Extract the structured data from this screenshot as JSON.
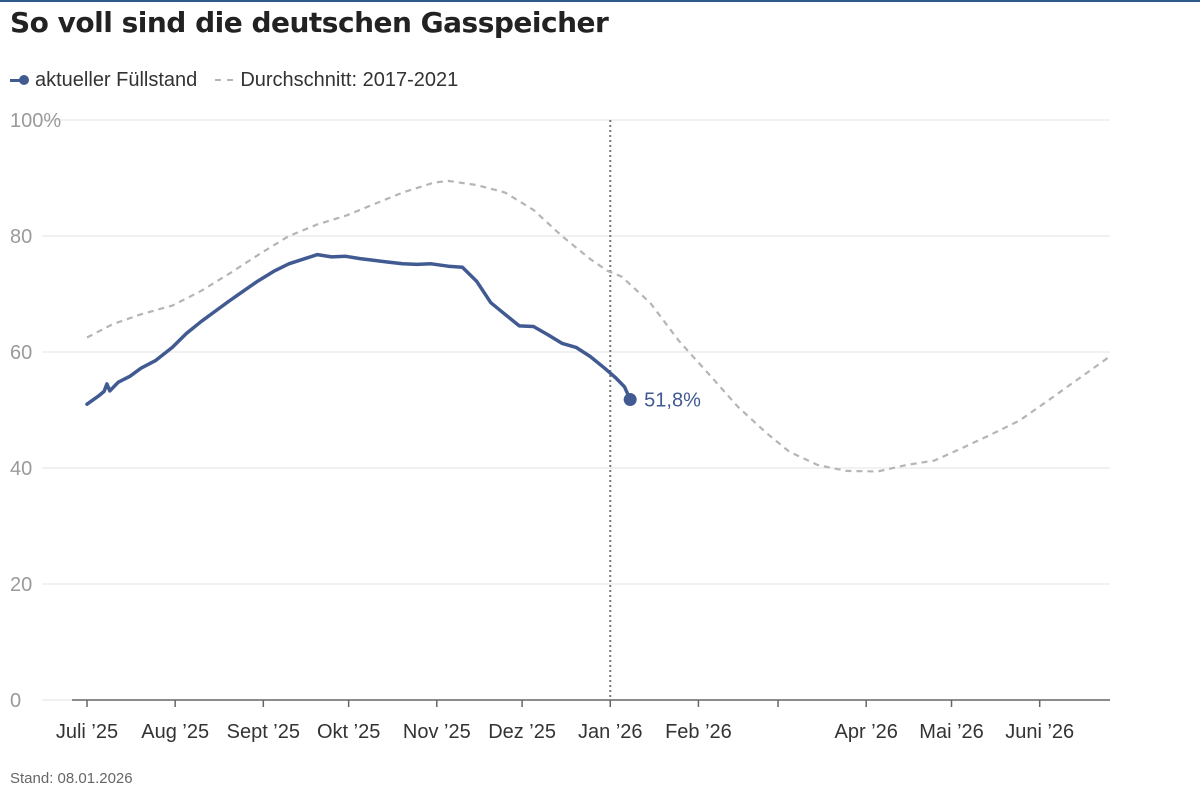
{
  "header": {
    "title": "So voll sind die deutschen Gasspeicher",
    "source_note": "Stand: 08.01.2026"
  },
  "colors": {
    "current": "#415a92",
    "average": "#b5b5b5",
    "grid": "#e3e3e3",
    "today_line": "#777777"
  },
  "chart_data": {
    "type": "line",
    "title": "So voll sind die deutschen Gasspeicher",
    "xlabel": "",
    "ylabel": "",
    "y_unit": "%",
    "ylim": [
      0,
      100
    ],
    "yticks": [
      0,
      20,
      40,
      60,
      80,
      100
    ],
    "ytick_labels": [
      "0",
      "20",
      "40",
      "60",
      "80",
      "100%"
    ],
    "xlim": [
      "2025-07-01",
      "2026-06-30"
    ],
    "xticks": [
      "2025-07-01",
      "2025-08-01",
      "2025-09-01",
      "2025-10-01",
      "2025-11-01",
      "2025-12-01",
      "2026-01-01",
      "2026-02-01",
      "2026-03-01",
      "2026-04-01",
      "2026-05-01",
      "2026-06-01"
    ],
    "xtick_labels": [
      "Juli ’25",
      "Aug ’25",
      "Sept ’25",
      "Okt ’25",
      "Nov ’25",
      "Dez ’25",
      "Jan ’26",
      "Feb ’26",
      "",
      "Apr ’26",
      "Mai ’26",
      "Juni ’26"
    ],
    "grid": true,
    "legend_position": "top-left",
    "today_marker": "2026-01-01",
    "series": [
      {
        "name": "aktueller Füllstand",
        "style": "solid",
        "x": [
          "2025-07-01",
          "2025-07-05",
          "2025-07-07",
          "2025-07-08",
          "2025-07-09",
          "2025-07-12",
          "2025-07-16",
          "2025-07-20",
          "2025-07-25",
          "2025-07-31",
          "2025-08-05",
          "2025-08-10",
          "2025-08-15",
          "2025-08-20",
          "2025-08-25",
          "2025-08-30",
          "2025-09-01",
          "2025-09-05",
          "2025-09-10",
          "2025-09-15",
          "2025-09-20",
          "2025-09-25",
          "2025-09-30",
          "2025-10-05",
          "2025-10-10",
          "2025-10-15",
          "2025-10-20",
          "2025-10-25",
          "2025-10-30",
          "2025-11-05",
          "2025-11-10",
          "2025-11-15",
          "2025-11-20",
          "2025-11-25",
          "2025-11-30",
          "2025-12-05",
          "2025-12-10",
          "2025-12-15",
          "2025-12-20",
          "2025-12-25",
          "2025-12-30",
          "2026-01-03",
          "2026-01-06",
          "2026-01-08"
        ],
        "values": [
          51,
          52.4,
          53.2,
          54.5,
          53.3,
          54.8,
          55.8,
          57.2,
          58.5,
          60.8,
          63.2,
          65.2,
          67,
          68.8,
          70.5,
          72.2,
          72.8,
          74,
          75.2,
          76,
          76.8,
          76.4,
          76.5,
          76.1,
          75.8,
          75.5,
          75.2,
          75.1,
          75.2,
          74.8,
          74.6,
          72.2,
          68.5,
          66.5,
          64.5,
          64.4,
          63,
          61.5,
          60.8,
          59.2,
          57.2,
          55.5,
          54,
          51.8
        ],
        "end_label": "51,8%"
      },
      {
        "name": "Durchschnitt: 2017-2021",
        "style": "dashed",
        "x": [
          "2025-07-01",
          "2025-07-10",
          "2025-07-20",
          "2025-07-31",
          "2025-08-10",
          "2025-08-20",
          "2025-08-31",
          "2025-09-10",
          "2025-09-20",
          "2025-09-30",
          "2025-10-10",
          "2025-10-20",
          "2025-10-31",
          "2025-11-05",
          "2025-11-15",
          "2025-11-25",
          "2025-12-05",
          "2025-12-15",
          "2025-12-25",
          "2025-12-31",
          "2026-01-05",
          "2026-01-15",
          "2026-01-25",
          "2026-02-05",
          "2026-02-15",
          "2026-02-25",
          "2026-03-05",
          "2026-03-15",
          "2026-03-25",
          "2026-04-05",
          "2026-04-15",
          "2026-04-25",
          "2026-05-05",
          "2026-05-15",
          "2026-05-25",
          "2026-06-05",
          "2026-06-15",
          "2026-06-25"
        ],
        "values": [
          62.5,
          64.8,
          66.5,
          68,
          70.5,
          73.5,
          77,
          80,
          82,
          83.5,
          85.5,
          87.5,
          89.2,
          89.5,
          88.8,
          87.5,
          84.5,
          80,
          76,
          74,
          73,
          68.5,
          62,
          56,
          50.5,
          46,
          42.8,
          40.5,
          39.5,
          39.4,
          40.5,
          41.3,
          43.5,
          45.8,
          48.2,
          52,
          55.5,
          59
        ]
      }
    ]
  }
}
